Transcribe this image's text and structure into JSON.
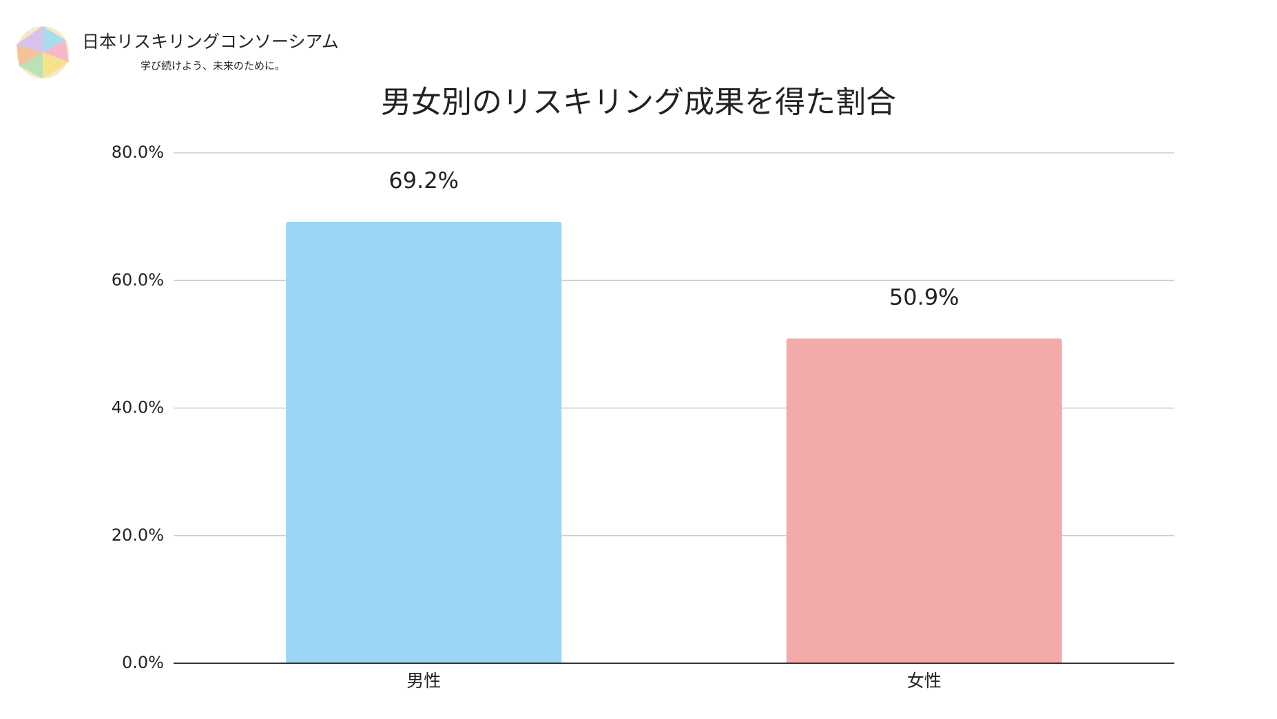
{
  "header": {
    "logo_title": "日本リスキリングコンソーシアム",
    "logo_tagline": "学び続けよう、未来のために。"
  },
  "chart_data": {
    "type": "bar",
    "title": "男女別のリスキリング成果を得た割合",
    "categories": [
      "男性",
      "女性"
    ],
    "values": [
      69.2,
      50.9
    ],
    "value_labels": [
      "69.2%",
      "50.9%"
    ],
    "colors": [
      "#9bd5f3",
      "#f4aaa9"
    ],
    "ylim": [
      0,
      80
    ],
    "yticks": [
      {
        "value": 0,
        "label": "0.0%"
      },
      {
        "value": 20,
        "label": "20.0%"
      },
      {
        "value": 40,
        "label": "40.0%"
      },
      {
        "value": 60,
        "label": "60.0%"
      },
      {
        "value": 80,
        "label": "80.0%"
      }
    ],
    "grid": true
  }
}
